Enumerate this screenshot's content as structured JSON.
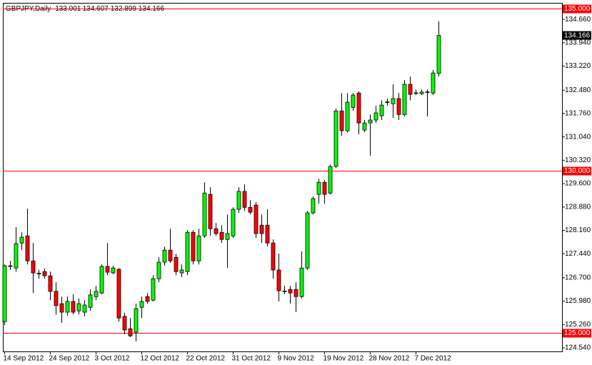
{
  "chart_data": {
    "type": "candlestick",
    "title": "GBPJPY,Daily",
    "categories": [
      "14 Sep 2012",
      null,
      null,
      null,
      null,
      null,
      null,
      null,
      "24 Sep 2012",
      null,
      null,
      null,
      null,
      null,
      null,
      null,
      "3 Oct 2012",
      null,
      null,
      null,
      null,
      null,
      null,
      null,
      "12 Oct 2012",
      null,
      null,
      null,
      null,
      null,
      null,
      null,
      "22 Oct 2012",
      null,
      null,
      null,
      null,
      null,
      null,
      null,
      "31 Oct 2012",
      null,
      null,
      null,
      null,
      null,
      null,
      null,
      "9 Nov 2012",
      null,
      null,
      null,
      null,
      null,
      null,
      null,
      "19 Nov 2012",
      null,
      null,
      null,
      null,
      null,
      null,
      null,
      "28 Nov 2012",
      null,
      null,
      null,
      null,
      null,
      null,
      null,
      "7 Dec 2012",
      null,
      null,
      null,
      null
    ],
    "open": [
      125.35,
      127.07,
      127.0,
      127.77,
      127.99,
      127.22,
      126.83,
      126.89,
      126.76,
      126.28,
      125.9,
      125.64,
      125.97,
      125.68,
      125.64,
      125.79,
      126.12,
      126.23,
      127.05,
      126.85,
      126.96,
      125.51,
      125.13,
      125.02,
      125.79,
      126.12,
      126.01,
      126.67,
      127.18,
      127.55,
      127.33,
      126.85,
      126.89,
      128.1,
      127.22,
      127.99,
      129.27,
      128.21,
      128.1,
      127.88,
      127.99,
      128.81,
      129.36,
      128.87,
      128.94,
      128.32,
      128.32,
      127.77,
      126.94,
      126.28,
      126.34,
      126.34,
      126.12,
      127.0,
      128.7,
      129.27,
      129.64,
      129.31,
      130.13,
      131.84,
      131.23,
      131.95,
      132.39,
      131.25,
      131.47,
      131.56,
      131.69,
      132.11,
      132.06,
      132.22,
      131.73,
      132.66,
      132.39,
      132.37,
      132.42,
      132.39,
      133.001
    ],
    "high": [
      127.11,
      127.22,
      128.26,
      128.1,
      128.83,
      127.77,
      126.94,
      126.98,
      126.89,
      126.56,
      126.12,
      126.12,
      126.19,
      126.06,
      126.01,
      126.34,
      126.45,
      127.11,
      127.77,
      127.07,
      127.0,
      125.62,
      125.46,
      125.9,
      126.12,
      126.23,
      126.78,
      127.33,
      127.66,
      128.21,
      127.44,
      127.11,
      128.17,
      128.17,
      128.21,
      129.64,
      129.49,
      128.39,
      128.32,
      128.65,
      128.87,
      129.49,
      129.58,
      129.09,
      129.03,
      128.65,
      128.81,
      127.88,
      127.44,
      126.45,
      126.45,
      126.56,
      127.51,
      128.76,
      129.2,
      129.75,
      129.71,
      130.19,
      131.91,
      132.39,
      132.39,
      132.39,
      132.44,
      131.56,
      131.73,
      132.0,
      132.17,
      132.22,
      132.66,
      132.39,
      132.79,
      132.9,
      132.5,
      132.5,
      132.5,
      133.1,
      134.607
    ],
    "low": [
      125.24,
      126.94,
      126.89,
      127.55,
      127.11,
      126.23,
      126.67,
      126.67,
      126.01,
      125.57,
      125.31,
      125.53,
      125.57,
      125.57,
      125.51,
      125.68,
      126.01,
      126.19,
      126.78,
      126.81,
      125.35,
      124.96,
      124.87,
      124.74,
      125.46,
      125.9,
      125.97,
      126.56,
      127.07,
      127.16,
      126.78,
      126.72,
      126.78,
      127.11,
      127.11,
      127.93,
      127.99,
      127.99,
      127.77,
      127.0,
      127.93,
      128.7,
      128.76,
      128.65,
      127.93,
      127.77,
      127.66,
      126.67,
      125.97,
      126.19,
      125.9,
      125.64,
      126.06,
      126.94,
      128.65,
      128.98,
      128.98,
      129.27,
      130.08,
      131.07,
      131.18,
      131.84,
      131.12,
      131.18,
      130.46,
      131.47,
      131.56,
      132.0,
      131.62,
      131.56,
      131.67,
      132.17,
      132.33,
      132.33,
      131.67,
      132.33,
      132.899
    ],
    "close": [
      127.07,
      127.05,
      127.75,
      127.95,
      127.22,
      126.85,
      126.84,
      126.76,
      126.28,
      125.84,
      125.64,
      125.97,
      125.64,
      125.9,
      125.86,
      126.17,
      126.28,
      127.05,
      126.87,
      127.0,
      125.46,
      125.09,
      124.91,
      125.75,
      125.97,
      125.97,
      126.67,
      127.18,
      127.55,
      127.22,
      126.89,
      126.94,
      128.1,
      127.22,
      127.99,
      129.31,
      128.21,
      128.06,
      127.88,
      128.06,
      128.81,
      129.36,
      128.87,
      128.72,
      128.06,
      128.06,
      127.77,
      126.94,
      126.3,
      126.29,
      126.23,
      126.12,
      127.0,
      128.7,
      129.14,
      129.64,
      129.27,
      130.13,
      131.84,
      131.23,
      132.11,
      132.33,
      131.47,
      131.47,
      131.56,
      131.78,
      132.02,
      132.12,
      132.22,
      131.73,
      132.66,
      132.35,
      132.4,
      132.42,
      132.43,
      133.01,
      134.166
    ],
    "up_color": "#00ff00",
    "down_color": "#ff0000",
    "ylim": [
      124.43,
      135.17
    ],
    "yticks": [
      {
        "value": 124.54,
        "label": "124.540"
      },
      {
        "value": 125.26,
        "label": "125.260"
      },
      {
        "value": 125.98,
        "label": "125.980"
      },
      {
        "value": 126.7,
        "label": "126.700"
      },
      {
        "value": 127.44,
        "label": "127.440"
      },
      {
        "value": 128.16,
        "label": "128.160"
      },
      {
        "value": 128.88,
        "label": "128.880"
      },
      {
        "value": 129.6,
        "label": "129.600"
      },
      {
        "value": 130.32,
        "label": "130.320"
      },
      {
        "value": 131.04,
        "label": "131.040"
      },
      {
        "value": 131.76,
        "label": "131.760"
      },
      {
        "value": 132.48,
        "label": "132.480"
      },
      {
        "value": 133.22,
        "label": "133.220"
      },
      {
        "value": 133.94,
        "label": "133.940"
      },
      {
        "value": 134.66,
        "label": "134.660"
      }
    ],
    "hlines": [
      {
        "value": 125,
        "label": "125.000"
      },
      {
        "value": 130,
        "label": "130.000"
      },
      {
        "value": 135,
        "label": "135.000"
      }
    ],
    "hline_color": "#ff0000"
  }
}
